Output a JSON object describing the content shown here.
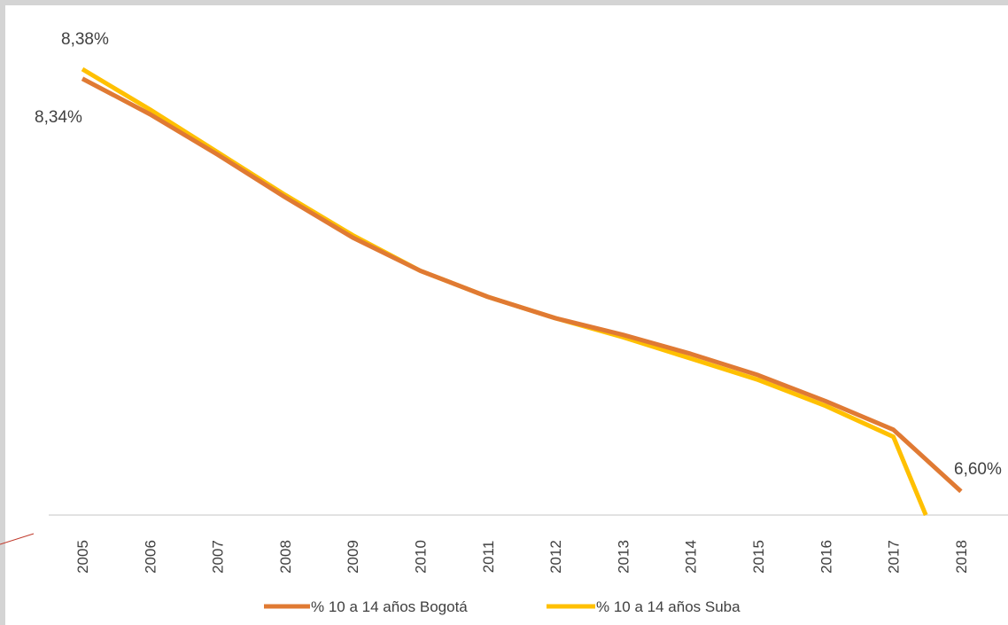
{
  "chart_data": {
    "type": "line",
    "title": "",
    "xlabel": "",
    "ylabel": "",
    "categories": [
      "2005",
      "2006",
      "2007",
      "2008",
      "2009",
      "2010",
      "2011",
      "2012",
      "2013",
      "2014",
      "2015",
      "2016",
      "2017",
      "2018"
    ],
    "ylim": [
      6.5,
      8.41
    ],
    "grid": false,
    "legend_position": "bottom",
    "series": [
      {
        "name": "% 10 a 14 años Bogotá",
        "color": "#e07a33",
        "values": [
          8.34,
          8.19,
          8.02,
          7.84,
          7.67,
          7.53,
          7.42,
          7.33,
          7.26,
          7.18,
          7.09,
          6.98,
          6.86,
          6.6
        ]
      },
      {
        "name": "% 10 a 14 años Suba",
        "color": "#ffc000",
        "values": [
          8.38,
          8.21,
          8.03,
          7.85,
          7.68,
          7.53,
          7.42,
          7.33,
          7.25,
          7.16,
          7.07,
          6.96,
          6.83,
          null
        ],
        "trailing_drop_to": 6.5
      }
    ],
    "data_labels": {
      "suba_first": "8,38%",
      "bogota_first": "8,34%",
      "bogota_last": "6,60%"
    }
  }
}
